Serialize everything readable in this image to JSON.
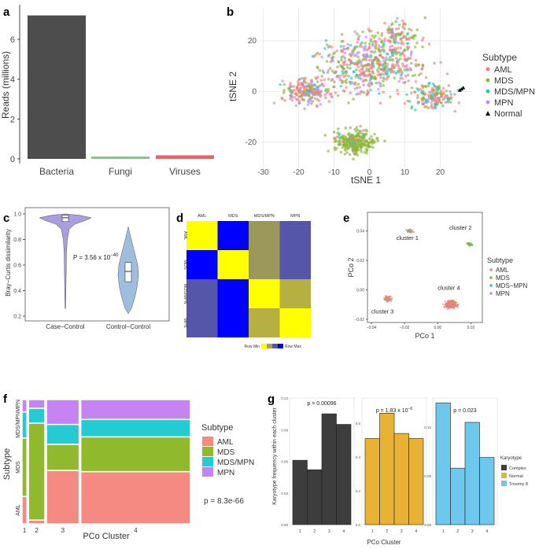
{
  "panels": {
    "a": {
      "label": "a",
      "chart_data": {
        "type": "bar",
        "categories": [
          "Bacteria",
          "Fungi",
          "Viruses"
        ],
        "values": [
          7.2,
          0.08,
          0.18
        ],
        "colors": [
          "#4d4d4d",
          "#7fcc7f",
          "#f26060"
        ],
        "ylabel": "Reads (millions)",
        "yticks": [
          "0",
          "2",
          "4",
          "6"
        ],
        "ylim": [
          0,
          7.5
        ]
      }
    },
    "b": {
      "label": "b",
      "chart_data": {
        "type": "scatter",
        "xlabel": "tSNE 1",
        "ylabel": "tSNE 2",
        "xticks": [
          "-30",
          "-20",
          "-10",
          "0",
          "10",
          "20"
        ],
        "yticks": [
          "-20",
          "0",
          "20"
        ],
        "xlim": [
          -31,
          29
        ],
        "ylim": [
          -30,
          33
        ],
        "legend_title": "Subtype",
        "legend": [
          "AML",
          "MDS",
          "MDS/MPN",
          "MPN",
          "Normal"
        ],
        "colors": [
          "#f08080",
          "#8fb43a",
          "#2ec4c4",
          "#c98cf0",
          "#111111"
        ],
        "normal_points": [
          [
            26,
            1
          ],
          [
            25.5,
            0.5
          ],
          [
            26.5,
            1.5
          ]
        ]
      }
    },
    "c": {
      "label": "c",
      "chart_data": {
        "type": "violin",
        "categories": [
          "Case−Control",
          "Control−Control"
        ],
        "medians": [
          0.97,
          0.55
        ],
        "q1": [
          0.94,
          0.47
        ],
        "q3": [
          0.99,
          0.62
        ],
        "ylim": [
          0.2,
          1.05
        ],
        "ylabel": "Bray−Curtis dissimilarity",
        "yticks": [
          "0.2",
          "0.4",
          "0.6",
          "0.8",
          "1.0"
        ],
        "annotation": "P = 3.56 x 10",
        "annotation_exp": "−40",
        "colors": [
          "#8e7cd6",
          "#7fa7d0"
        ]
      }
    },
    "d": {
      "label": "d",
      "chart_data": {
        "type": "heatmap",
        "categories": [
          "AML",
          "MDS",
          "MDS/MPN",
          "MPN"
        ],
        "values": [
          [
            1,
            0,
            0.55,
            0.3
          ],
          [
            0,
            1,
            0.55,
            0.3
          ],
          [
            0.3,
            0,
            1,
            0.65
          ],
          [
            0.3,
            0,
            0.65,
            1
          ]
        ],
        "legend_min": "Row Min",
        "legend_max": "Row Max"
      }
    },
    "e": {
      "label": "e",
      "chart_data": {
        "type": "scatter",
        "xlabel": "PCo 1",
        "ylabel": "PCo 2",
        "xticks": [
          "−0.04",
          "−0.02",
          "0.00",
          "0.02"
        ],
        "yticks": [
          "−0.02",
          "0.00",
          "0.02",
          "0.04"
        ],
        "xlim": [
          -0.04,
          0.025
        ],
        "ylim": [
          -0.02,
          0.05
        ],
        "clusters": [
          "cluster 1",
          "cluster 2",
          "cluster 3",
          "cluster 4"
        ],
        "legend_title": "Subtype",
        "legend": [
          "AML",
          "MDS",
          "MDS−MPN",
          "MPN"
        ],
        "colors": [
          "#f08080",
          "#8fb43a",
          "#2ec4c4",
          "#c98cf0"
        ]
      }
    },
    "f": {
      "label": "f",
      "chart_data": {
        "type": "mosaic",
        "xlabel": "PCo Cluster",
        "ylabel": "Subtype",
        "clusters": [
          "1",
          "2",
          "3",
          "4"
        ],
        "cluster_widths": [
          0.03,
          0.1,
          0.2,
          0.67
        ],
        "subtypes": [
          "AML",
          "MDS",
          "MDS/MPN",
          "MPN"
        ],
        "proportions": [
          [
            0.22,
            0.47,
            0.21,
            0.1
          ],
          [
            0.03,
            0.78,
            0.12,
            0.07
          ],
          [
            0.43,
            0.21,
            0.16,
            0.2
          ],
          [
            0.42,
            0.28,
            0.14,
            0.16
          ]
        ],
        "legend_title": "Subtype",
        "legend": [
          "AML",
          "MDS",
          "MDS/MPN",
          "MPN"
        ],
        "colors": [
          "#f58a82",
          "#91b92d",
          "#25cbd3",
          "#c684f2"
        ],
        "p_value": "p = 8.3e-66"
      }
    },
    "g": {
      "label": "g",
      "chart_data": {
        "type": "bar",
        "ylabel": "Karyotype frequency within each cluster",
        "xlabel": "PCo Cluster",
        "categories": [
          "1",
          "2",
          "3",
          "4"
        ],
        "series": [
          {
            "name": "Complex",
            "values": [
              0.061,
              0.052,
              0.105,
              0.095
            ],
            "ylim": [
              0.0,
              0.12
            ],
            "yticks": [
              "0.00",
              "0.03",
              "0.06",
              "0.09",
              "0.12"
            ],
            "p": "p = 0.00096",
            "color": "#3d3d3d"
          },
          {
            "name": "Normal",
            "values": [
              0.51,
              0.66,
              0.54,
              0.51
            ],
            "ylim": [
              0.0,
              0.75
            ],
            "yticks": [],
            "p": "p = 1.83 x 10",
            "p_exp": "−6",
            "color": "#e8b334"
          },
          {
            "name": "Trisomy 8",
            "values": [
              0.125,
              0.058,
              0.105,
              0.069
            ],
            "ylim": [
              0.0,
              0.13
            ],
            "yticks": [
              "0.00",
              "0.05",
              "0.10"
            ],
            "p": "p = 0.023",
            "color": "#6ec7ec"
          }
        ],
        "ytick_labels_mid": [
          "0.0",
          "0.2",
          "0.4",
          "0.6"
        ],
        "legend_title": "Karyotype",
        "legend": [
          "Complex",
          "Normal",
          "Trisomy 8"
        ]
      }
    }
  }
}
